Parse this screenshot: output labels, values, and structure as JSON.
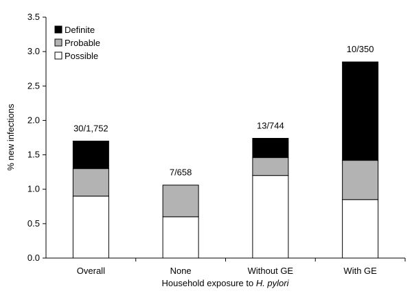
{
  "chart_data": {
    "type": "bar",
    "stacked": true,
    "categories": [
      "Overall",
      "None",
      "Without GE",
      "With GE"
    ],
    "series": [
      {
        "name": "Possible",
        "values": [
          0.9,
          0.6,
          1.2,
          0.85
        ],
        "color": "#ffffff"
      },
      {
        "name": "Probable",
        "values": [
          0.4,
          0.46,
          0.26,
          0.57
        ],
        "color": "#b3b3b3"
      },
      {
        "name": "Definite",
        "values": [
          0.4,
          0.0,
          0.28,
          1.43
        ],
        "color": "#000000"
      }
    ],
    "bar_labels": [
      "30/1,752",
      "7/658",
      "13/744",
      "10/350"
    ],
    "ylabel": "% new infections",
    "xlabel_prefix": "Household exposure to ",
    "xlabel_italic": "H. pylori",
    "ylim": [
      0,
      3.5
    ],
    "yticks": [
      "0.0",
      "0.5",
      "1.0",
      "1.5",
      "2.0",
      "2.5",
      "3.0",
      "3.5"
    ],
    "legend_position": "top-left",
    "legend_order": [
      "Definite",
      "Probable",
      "Possible"
    ],
    "grid": false
  }
}
